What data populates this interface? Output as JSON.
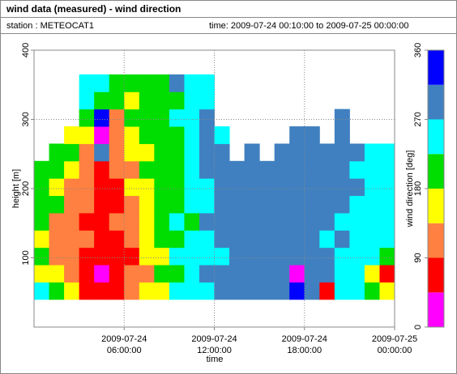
{
  "chart_data": {
    "type": "heatmap",
    "title": "wind data (measured) - wind direction",
    "station": "station : METEOCAT1",
    "time_range": "time: 2009-07-24 00:10:00 to 2009-07-25 00:00:00",
    "x_label": "time",
    "y_label": "height [m]",
    "xlim": [
      0,
      24
    ],
    "xticks": [
      {
        "value": 6,
        "label": "2009-07-24\n06:00:00"
      },
      {
        "value": 12,
        "label": "2009-07-24\n12:00:00"
      },
      {
        "value": 18,
        "label": "2009-07-24\n18:00:00"
      },
      {
        "value": 24,
        "label": "2009-07-25\n00:00:00"
      }
    ],
    "ylim": [
      0,
      400
    ],
    "yticks": [
      100,
      200,
      300,
      400
    ],
    "grid": true,
    "x_bins": [
      0,
      1,
      2,
      3,
      4,
      5,
      6,
      7,
      8,
      9,
      10,
      11,
      12,
      13,
      14,
      15,
      16,
      17,
      18,
      19,
      20,
      21,
      22,
      23,
      24
    ],
    "y_bins": [
      40,
      65,
      90,
      115,
      140,
      165,
      190,
      215,
      240,
      265,
      290,
      315,
      340,
      365
    ],
    "values": [
      [
        250,
        160,
        200,
        160,
        200,
        200,
        200,
        200,
        null,
        null,
        null,
        null,
        null
      ],
      [
        200,
        160,
        110,
        110,
        110,
        200,
        160,
        200,
        200,
        null,
        null,
        null,
        null
      ],
      [
        160,
        110,
        110,
        110,
        110,
        110,
        110,
        160,
        200,
        160,
        null,
        null,
        null
      ],
      [
        70,
        70,
        70,
        110,
        70,
        110,
        110,
        110,
        110,
        160,
        200,
        250,
        250
      ],
      [
        70,
        20,
        70,
        70,
        70,
        70,
        70,
        70,
        290,
        20,
        340,
        200,
        250
      ],
      [
        70,
        70,
        70,
        70,
        110,
        70,
        70,
        110,
        110,
        110,
        110,
        200,
        200
      ],
      [
        110,
        110,
        70,
        110,
        110,
        110,
        160,
        110,
        160,
        160,
        200,
        160,
        200
      ],
      [
        160,
        110,
        160,
        160,
        160,
        160,
        160,
        200,
        160,
        200,
        200,
        200,
        200
      ],
      [
        160,
        200,
        160,
        200,
        200,
        200,
        200,
        200,
        200,
        200,
        200,
        200,
        200
      ],
      [
        250,
        200,
        250,
        200,
        250,
        200,
        200,
        200,
        200,
        200,
        250,
        200,
        290
      ],
      [
        250,
        250,
        250,
        250,
        200,
        250,
        250,
        250,
        250,
        250,
        250,
        250,
        250
      ],
      [
        250,
        290,
        250,
        250,
        290,
        250,
        250,
        290,
        290,
        290,
        290,
        250,
        250
      ],
      [
        290,
        290,
        250,
        290,
        290,
        290,
        290,
        290,
        290,
        250,
        null,
        null,
        null
      ],
      [
        290,
        290,
        290,
        290,
        290,
        290,
        290,
        290,
        null,
        null,
        null,
        null,
        null
      ],
      [
        290,
        290,
        290,
        290,
        290,
        290,
        290,
        290,
        290,
        null,
        null,
        null,
        null
      ],
      [
        290,
        290,
        290,
        290,
        290,
        290,
        290,
        290,
        null,
        null,
        null,
        null,
        null
      ],
      [
        290,
        290,
        290,
        290,
        290,
        290,
        290,
        290,
        290,
        null,
        null,
        null,
        null
      ],
      [
        340,
        20,
        290,
        290,
        290,
        290,
        290,
        290,
        290,
        290,
        null,
        null,
        null
      ],
      [
        290,
        290,
        290,
        290,
        290,
        290,
        290,
        290,
        290,
        290,
        null,
        null,
        null
      ],
      [
        70,
        290,
        290,
        250,
        290,
        290,
        290,
        290,
        290,
        null,
        null,
        null,
        null
      ],
      [
        250,
        250,
        250,
        290,
        250,
        290,
        290,
        290,
        290,
        290,
        290,
        null,
        null
      ],
      [
        250,
        250,
        250,
        250,
        250,
        250,
        290,
        250,
        290,
        null,
        null,
        null,
        null
      ],
      [
        200,
        160,
        250,
        250,
        250,
        250,
        250,
        250,
        250,
        null,
        null,
        null,
        null
      ],
      [
        160,
        70,
        200,
        250,
        250,
        250,
        250,
        250,
        250,
        null,
        null,
        null,
        null
      ]
    ],
    "colorbar": {
      "label": "wind direction [deg]",
      "bins": [
        0,
        45,
        90,
        135,
        180,
        225,
        270,
        315,
        360
      ],
      "colors": [
        "#ff00ff",
        "#ff0000",
        "#ff8040",
        "#ffff00",
        "#00dd00",
        "#00ffff",
        "#4080c0",
        "#0000ff"
      ],
      "lim": [
        0,
        360
      ],
      "ticks": [
        0,
        90,
        180,
        270,
        360
      ]
    }
  }
}
